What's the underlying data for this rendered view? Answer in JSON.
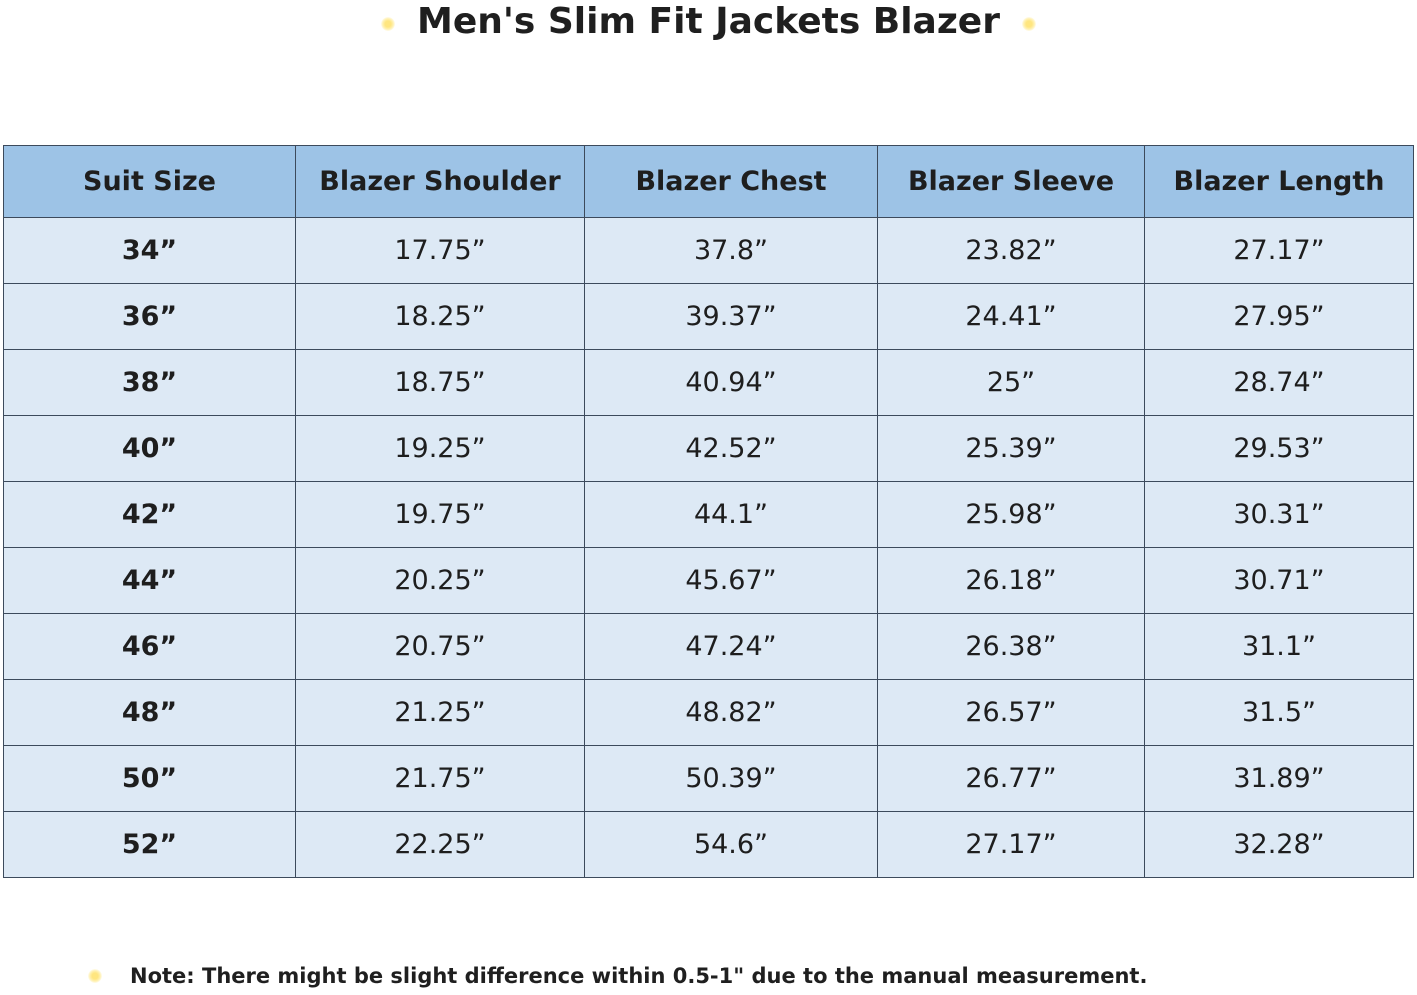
{
  "title": "Men's Slim Fit Jackets Blazer",
  "table": {
    "headers": [
      "Suit Size",
      "Blazer Shoulder",
      "Blazer Chest",
      "Blazer Sleeve",
      "Blazer Length"
    ],
    "rows": [
      [
        "34”",
        "17.75”",
        "37.8”",
        "23.82”",
        "27.17”"
      ],
      [
        "36”",
        "18.25”",
        "39.37”",
        "24.41”",
        "27.95”"
      ],
      [
        "38”",
        "18.75”",
        "40.94”",
        "25”",
        "28.74”"
      ],
      [
        "40”",
        "19.25”",
        "42.52”",
        "25.39”",
        "29.53”"
      ],
      [
        "42”",
        "19.75”",
        "44.1”",
        "25.98”",
        "30.31”"
      ],
      [
        "44”",
        "20.25”",
        "45.67”",
        "26.18”",
        "30.71”"
      ],
      [
        "46”",
        "20.75”",
        "47.24”",
        "26.38”",
        "31.1”"
      ],
      [
        "48”",
        "21.25”",
        "48.82”",
        "26.57”",
        "31.5”"
      ],
      [
        "50”",
        "21.75”",
        "50.39”",
        "26.77”",
        "31.89”"
      ],
      [
        "52”",
        "22.25”",
        "54.6”",
        "27.17”",
        "32.28”"
      ]
    ]
  },
  "note": "Note: There might be slight difference within 0.5-1\" due to the manual measurement.",
  "colors": {
    "header_background": "#9dc3e6",
    "cell_background": "#dde9f5",
    "border": "#3c4a5c",
    "bullet": "#ffe680"
  },
  "icons": {
    "bullet": "yellow-dot-icon"
  }
}
